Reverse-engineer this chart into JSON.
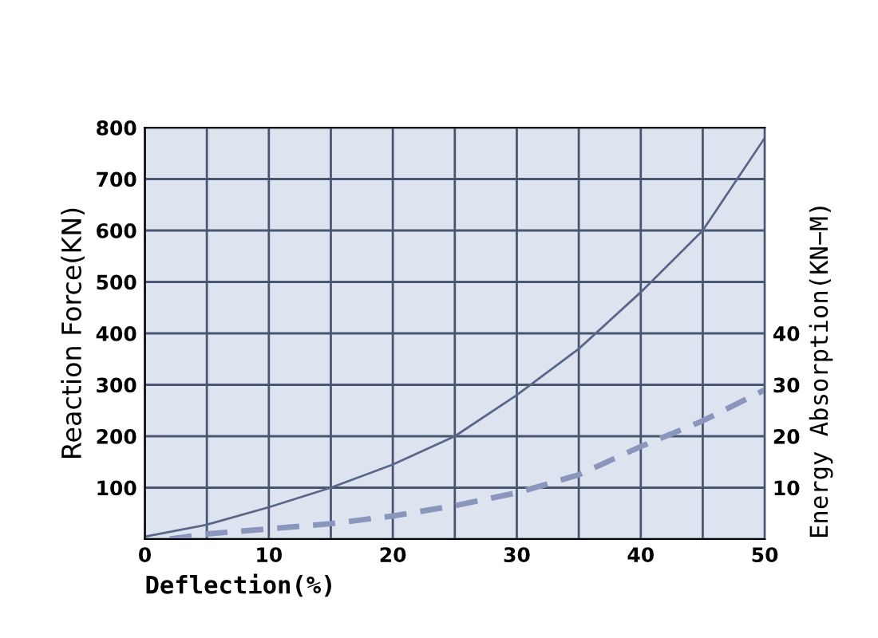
{
  "chart_data": {
    "type": "line",
    "xlabel": "Deflection(%)",
    "ylabel": "Reaction Force(KN)",
    "y2label": "Energy Absorption(KN−M)",
    "x": [
      0,
      5,
      10,
      15,
      20,
      25,
      30,
      35,
      40,
      45,
      50
    ],
    "series": [
      {
        "color": "#5a6688",
        "values": [
          5,
          28,
          62,
          100,
          145,
          200,
          280,
          370,
          480,
          600,
          780
        ],
        "line_style": "solid"
      },
      {
        "color": "#8a96bb",
        "axis": "y2",
        "x": [
          2,
          5,
          10,
          15,
          20,
          25,
          30,
          35,
          40,
          45,
          50
        ],
        "values": [
          0,
          1,
          2,
          3,
          4.5,
          6.5,
          9,
          12.5,
          18,
          23,
          29
        ],
        "line_style": "dashed"
      }
    ],
    "xlim": [
      0,
      50
    ],
    "xticks": [
      0,
      {
        "value": 5,
        "label": null
      },
      10,
      {
        "value": 15,
        "label": null
      },
      20,
      {
        "value": 25,
        "label": null
      },
      30,
      {
        "value": 35,
        "label": null
      },
      40,
      {
        "value": 45,
        "label": null
      },
      50
    ],
    "ylim": [
      0,
      800
    ],
    "yticks": [
      {
        "value": 0,
        "label": null
      },
      100,
      200,
      300,
      400,
      500,
      600,
      700,
      800
    ],
    "y2lim": [
      0,
      80
    ],
    "y2ticks": [
      10,
      20,
      30,
      40
    ],
    "grid": true,
    "marker": "none"
  }
}
